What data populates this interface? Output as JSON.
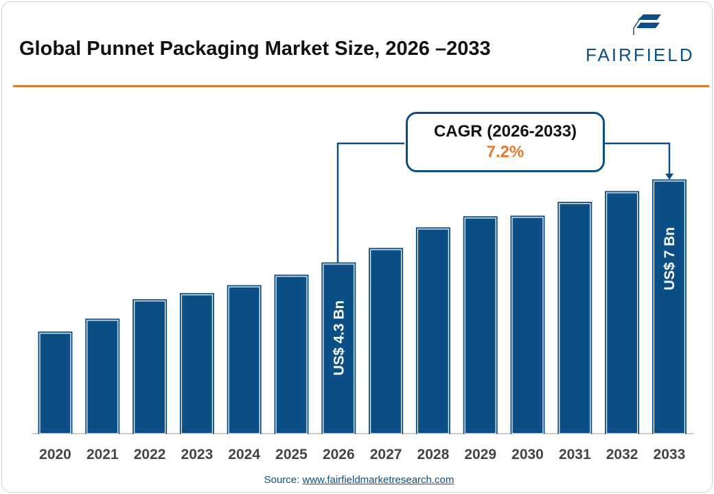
{
  "header": {
    "title": "Global Punnet Packaging Market Size, 2026 –2033",
    "logo_text": "FAIRFIELD"
  },
  "cagr": {
    "label": "CAGR (2026-2033)",
    "value": "7.2%"
  },
  "source": {
    "prefix": "Source: ",
    "link": "www.fairfieldmarketresearch.com"
  },
  "colors": {
    "bar": "#0b4f86",
    "accent": "#e8792b"
  },
  "chart_data": {
    "type": "bar",
    "title": "Global Punnet Packaging Market Size, 2026 –2033",
    "categories": [
      "2020",
      "2021",
      "2022",
      "2023",
      "2024",
      "2025",
      "2026",
      "2027",
      "2028",
      "2029",
      "2030",
      "2031",
      "2032",
      "2033"
    ],
    "values": [
      2.05,
      2.47,
      3.1,
      3.3,
      3.56,
      3.9,
      4.3,
      4.77,
      5.44,
      5.8,
      5.82,
      6.27,
      6.62,
      7.0
    ],
    "unit": "US$ Bn",
    "data_labels": {
      "2026": "US$ 4.3 Bn",
      "2033": "US$ 7 Bn"
    },
    "xlabel": "",
    "ylabel": "",
    "ylim": [
      -1.26,
      7.5
    ],
    "grid": false
  }
}
